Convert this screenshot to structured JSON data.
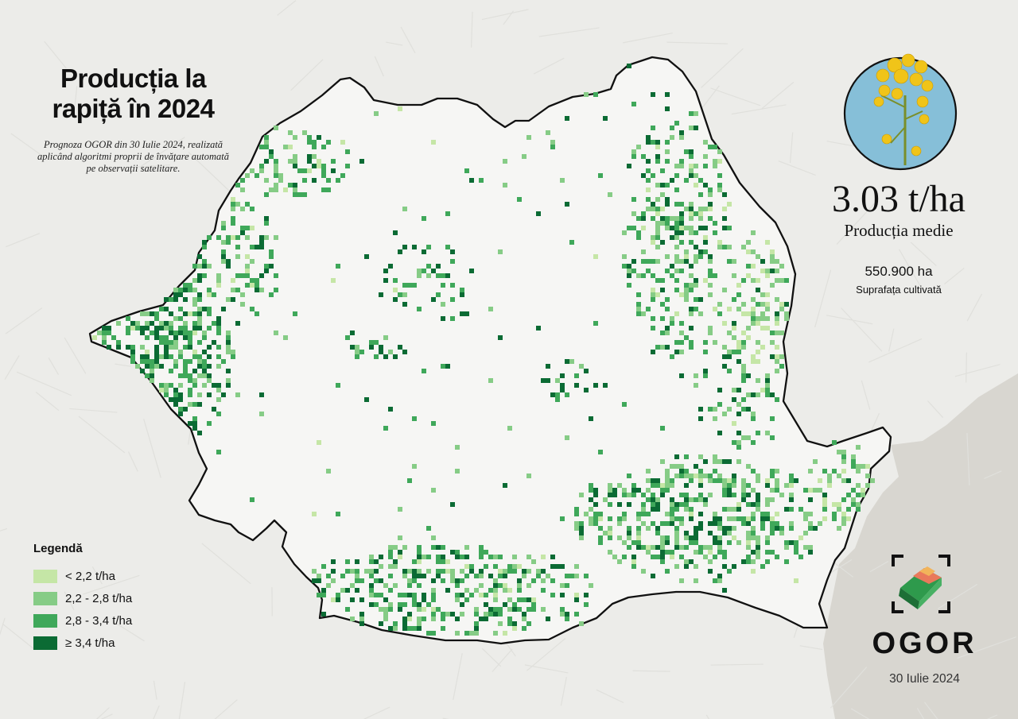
{
  "title": "Producția la rapiță în 2024",
  "subtitle": "Prognoza OGOR din 30 Iulie 2024, realizată aplicând algoritmi proprii de învățare automată pe observații satelitare.",
  "stats": {
    "average_value": "3.03 t/ha",
    "average_label": "Producția medie",
    "area_value": "550.900 ha",
    "area_label": "Suprafața cultivată"
  },
  "legend": {
    "title": "Legendă",
    "items": [
      {
        "label": "< 2,2 t/ha",
        "color": "#c5e6a6"
      },
      {
        "label": "2,2 - 2,8 t/ha",
        "color": "#86cc86"
      },
      {
        "label": "2,8 - 3,4 t/ha",
        "color": "#3fa85a"
      },
      {
        "label": "≥ 3,4 t/ha",
        "color": "#0b6b34"
      }
    ]
  },
  "brand": {
    "name": "OGOR",
    "date": "30 Iulie 2024"
  },
  "colors": {
    "country_fill": "#f6f6f4",
    "neighbors": "#ecece9",
    "sea": "#d8d6d0",
    "border": "#111111",
    "badge_background": "#86bfd8",
    "flower": "#f0c419"
  },
  "icons": [
    "rapeseed-flower-icon",
    "ogor-logo-icon"
  ]
}
